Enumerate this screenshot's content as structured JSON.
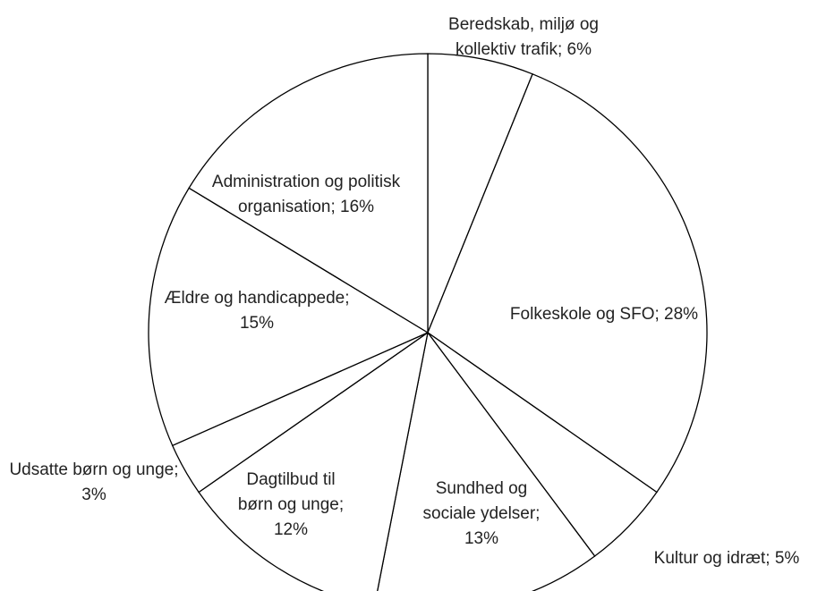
{
  "chart_data": {
    "type": "pie",
    "value_labels": [
      "Beredskab, miljø og kollektiv trafik; 6%",
      "Folkeskole og SFO; 28%",
      "Kultur og idræt; 5%",
      "Sundhed og sociale ydelser; 13%",
      "Dagtilbud til børn og unge; 12%",
      "Udsatte børn og unge; 3%",
      "Ældre og handicappede; 15%",
      "Administration og politisk organisation; 16%"
    ],
    "values": [
      6,
      28,
      5,
      13,
      12,
      3,
      15,
      16
    ],
    "color": "#ffffff",
    "edge_color": "#000000"
  }
}
